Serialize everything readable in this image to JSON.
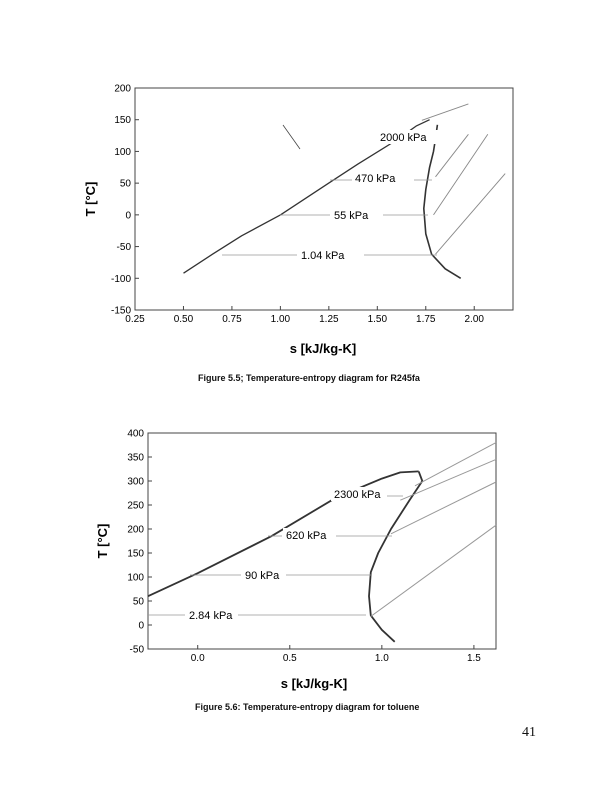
{
  "page_number": "41",
  "figures": [
    {
      "caption": "Figure 5.5; Temperature-entropy diagram for R245fa",
      "xlabel": "s [kJ/kg-K]",
      "ylabel": "T [°C]",
      "xticks": [
        "0.25",
        "0.50",
        "0.75",
        "1.00",
        "1.25",
        "1.50",
        "1.75",
        "2.00"
      ],
      "yticks": [
        "200",
        "150",
        "100",
        "50",
        "0",
        "-50",
        "-100",
        "-150"
      ],
      "pressure_labels": [
        "2000 kPa",
        "470 kPa",
        "55 kPa",
        "1.04 kPa"
      ]
    },
    {
      "caption": "Figure 5.6: Temperature-entropy diagram for toluene",
      "xlabel": "s [kJ/kg-K]",
      "ylabel": "T [°C]",
      "xticks": [
        "0.0",
        "0.5",
        "1.0",
        "1.5"
      ],
      "yticks": [
        "400",
        "350",
        "300",
        "250",
        "200",
        "150",
        "100",
        "50",
        "0",
        "-50"
      ],
      "pressure_labels": [
        "2300 kPa",
        "620 kPa",
        "90 kPa",
        "2.84 kPa"
      ]
    }
  ],
  "chart_data": [
    {
      "type": "line",
      "title": "Figure 5.5; Temperature-entropy diagram for R245fa",
      "xlabel": "s [kJ/kg-K]",
      "ylabel": "T [°C]",
      "xlim": [
        0.25,
        2.2
      ],
      "ylim": [
        -150,
        200
      ],
      "series": [
        {
          "values": [
            [
              0.5,
              -92
            ],
            [
              0.65,
              -62
            ],
            [
              0.8,
              -33
            ],
            [
              1.0,
              0
            ],
            [
              1.25,
              50
            ],
            [
              1.4,
              80
            ],
            [
              1.6,
              118
            ],
            [
              1.7,
              140
            ],
            [
              1.77,
              150
            ]
          ]
        },
        {
          "values": [
            [
              1.81,
              142
            ],
            [
              1.8,
              120
            ],
            [
              1.79,
              100
            ],
            [
              1.77,
              75
            ],
            [
              1.75,
              40
            ],
            [
              1.74,
              10
            ],
            [
              1.75,
              -30
            ],
            [
              1.78,
              -62
            ],
            [
              1.85,
              -85
            ],
            [
              1.93,
              -100
            ]
          ]
        },
        {
          "values": [
            [
              1.73,
              149
            ],
            [
              1.97,
              175
            ]
          ]
        },
        {
          "values": [
            [
              1.8,
              60
            ],
            [
              1.97,
              127
            ]
          ]
        },
        {
          "values": [
            [
              1.79,
              0
            ],
            [
              2.07,
              127
            ]
          ]
        },
        {
          "values": [
            [
              1.8,
              -62
            ],
            [
              2.16,
              65
            ]
          ]
        }
      ]
    },
    {
      "type": "line",
      "title": "Figure 5.6: Temperature-entropy diagram for toluene",
      "xlabel": "s [kJ/kg-K]",
      "ylabel": "T [°C]",
      "xlim": [
        -0.27,
        1.62
      ],
      "ylim": [
        -50,
        400
      ],
      "series": [
        {
          "values": [
            [
              -0.27,
              60
            ],
            [
              0.0,
              108
            ],
            [
              0.4,
              185
            ],
            [
              0.75,
              265
            ],
            [
              1.0,
              305
            ],
            [
              1.1,
              318
            ],
            [
              1.2,
              320
            ]
          ]
        },
        {
          "values": [
            [
              1.2,
              320
            ],
            [
              1.22,
              300
            ],
            [
              1.15,
              260
            ],
            [
              1.05,
              200
            ],
            [
              0.98,
              150
            ],
            [
              0.94,
              110
            ],
            [
              0.93,
              60
            ],
            [
              0.94,
              20
            ],
            [
              1.0,
              -10
            ],
            [
              1.07,
              -35
            ]
          ]
        },
        {
          "values": [
            [
              1.18,
              290
            ],
            [
              1.62,
              380
            ]
          ]
        },
        {
          "values": [
            [
              1.1,
              260
            ],
            [
              1.62,
              345
            ]
          ]
        },
        {
          "values": [
            [
              1.05,
              190
            ],
            [
              1.62,
              298
            ]
          ]
        },
        {
          "values": [
            [
              0.94,
              18
            ],
            [
              1.62,
              208
            ]
          ]
        }
      ]
    }
  ]
}
